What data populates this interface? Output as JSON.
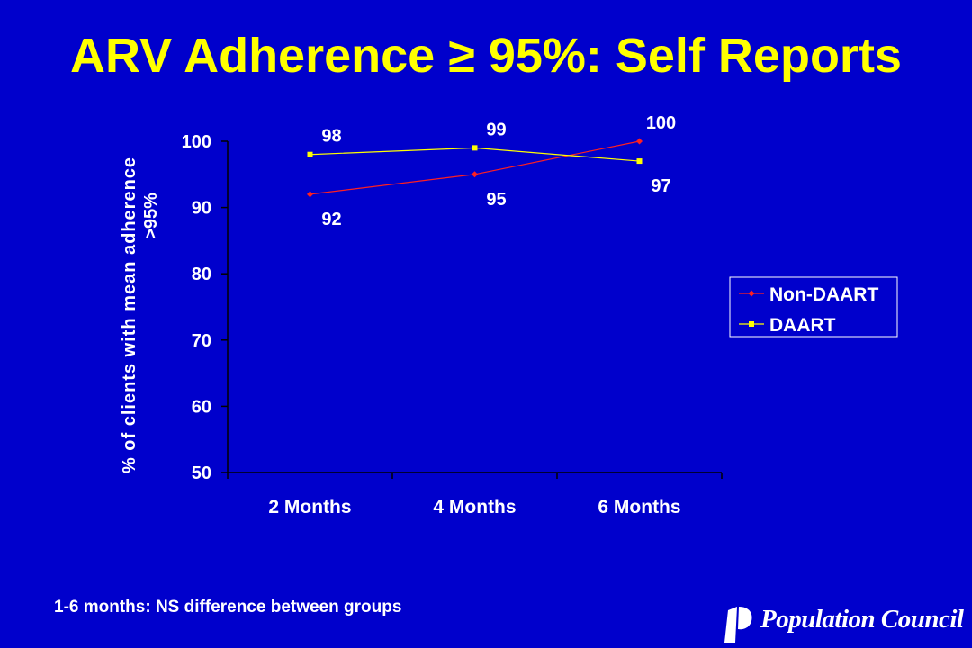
{
  "title": "ARV Adherence ≥ 95%: Self Reports",
  "footnote": "1-6 months: NS difference between groups",
  "logo": {
    "text": "Population Council",
    "icon": "population-council-logo"
  },
  "colors": {
    "background": "#0000cc",
    "title": "#ffff00",
    "text": "#ffffff",
    "non_daart": "#ff2020",
    "daart": "#ffff00"
  },
  "chart_data": {
    "type": "line",
    "categories": [
      "2 Months",
      "4 Months",
      "6 Months"
    ],
    "series": [
      {
        "name": "Non-DAART",
        "values": [
          92,
          95,
          100
        ],
        "color": "#ff2020",
        "marker": "diamond"
      },
      {
        "name": "DAART",
        "values": [
          98,
          99,
          97
        ],
        "color": "#ffff00",
        "marker": "square"
      }
    ],
    "ylabel": "% of clients with mean adherence >95%",
    "xlabel": "",
    "ylim": [
      50,
      100
    ],
    "yticks": [
      50,
      60,
      70,
      80,
      90,
      100
    ],
    "grid": false,
    "legend": "right"
  }
}
